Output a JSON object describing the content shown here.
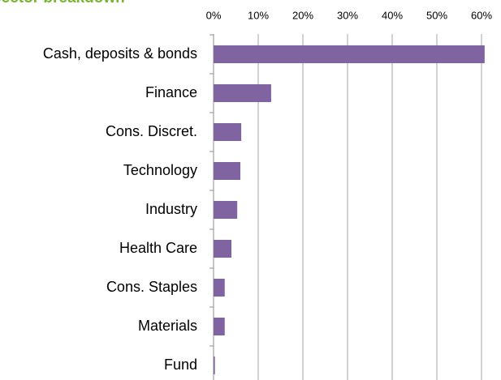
{
  "chart_data": {
    "type": "barh",
    "title": "Sector breakdown",
    "categories": [
      "Cash, deposits & bonds",
      "Finance",
      "Cons. Discret.",
      "Technology",
      "Industry",
      "Health Care",
      "Cons. Staples",
      "Materials",
      "Fund"
    ],
    "values": [
      60.7,
      12.9,
      6.2,
      6.0,
      5.3,
      4.0,
      2.5,
      2.5,
      0.3
    ],
    "color": "#8064a2",
    "xlim": [
      0,
      62
    ],
    "xticks": [
      {
        "value": 0,
        "label": "0%"
      },
      {
        "value": 10,
        "label": "10%"
      },
      {
        "value": 20,
        "label": "20%"
      },
      {
        "value": 30,
        "label": "30%"
      },
      {
        "value": 40,
        "label": "40%"
      },
      {
        "value": 50,
        "label": "50%"
      },
      {
        "value": 60,
        "label": "60%"
      }
    ],
    "grid": true
  }
}
